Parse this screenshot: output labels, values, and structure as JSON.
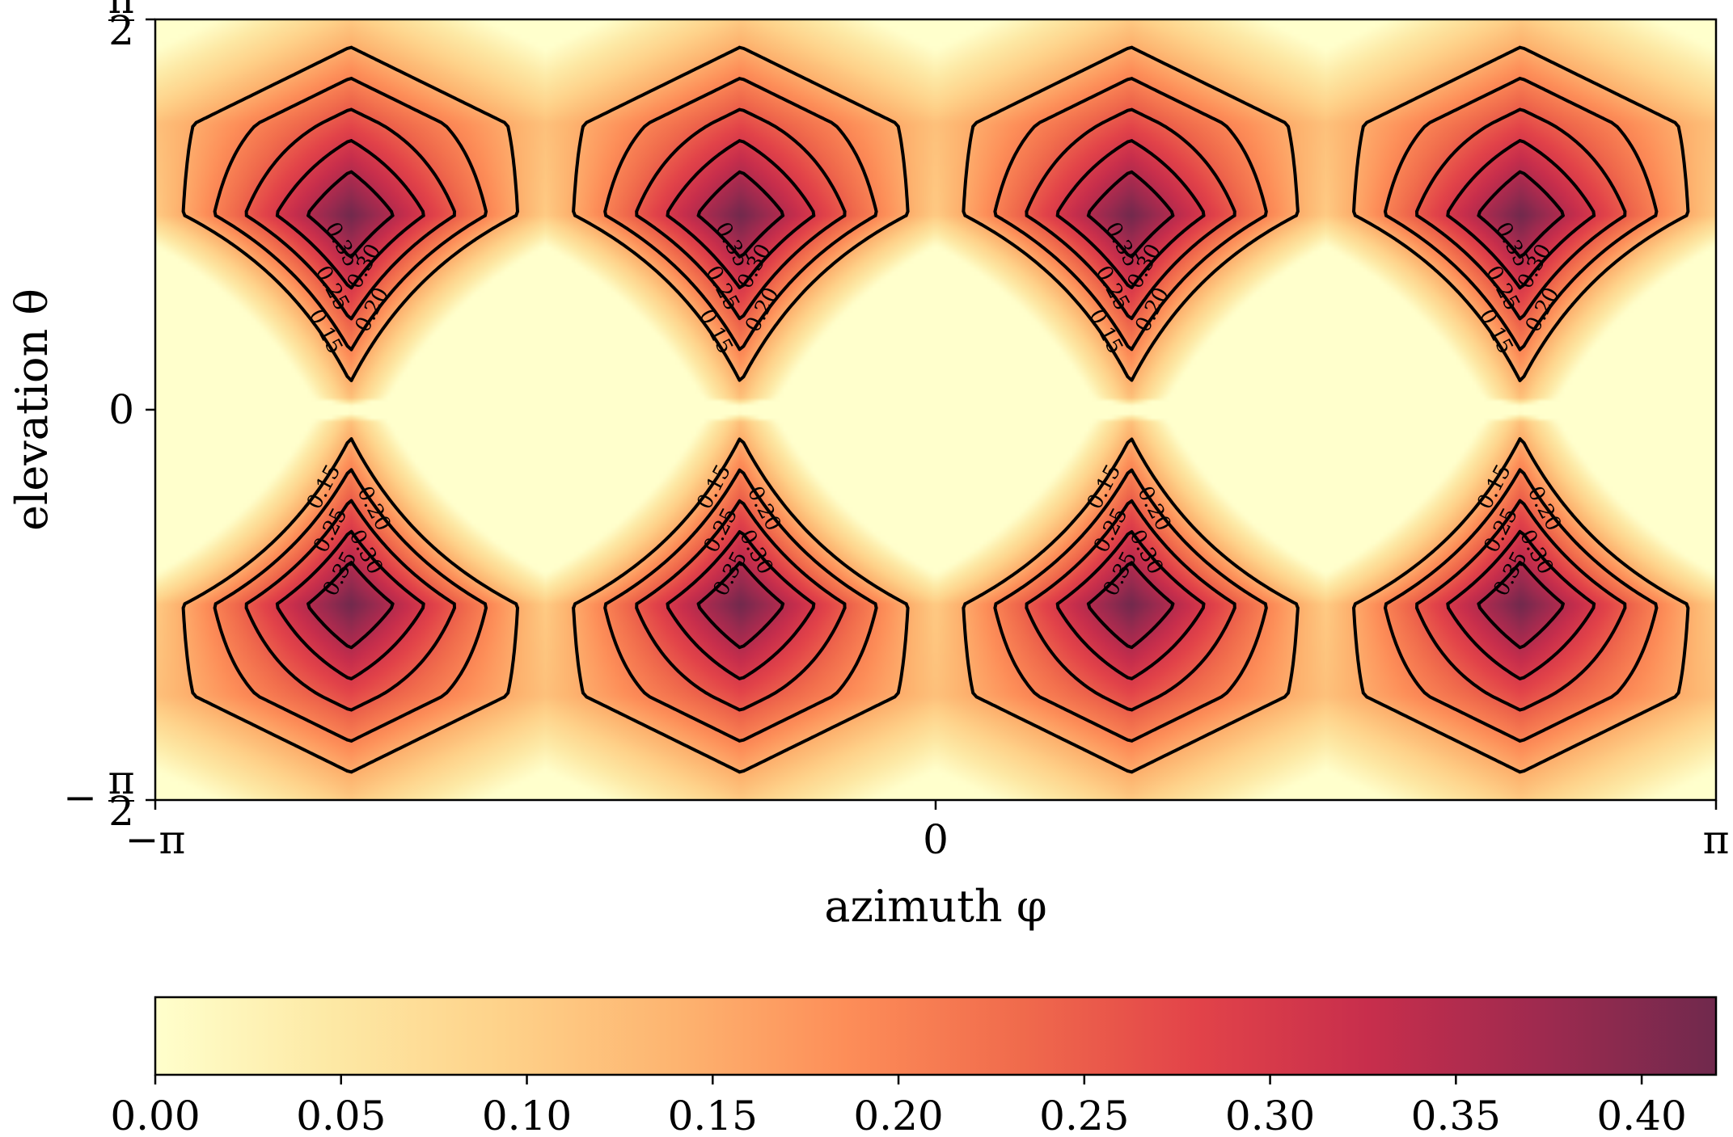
{
  "chart_data": {
    "type": "heatmap",
    "xlabel": "azimuth φ",
    "ylabel": "elevation θ",
    "xlim": [
      -3.14159,
      3.14159
    ],
    "ylim": [
      -1.5708,
      1.5708
    ],
    "xticks": [
      {
        "value": -3.14159,
        "label": "−π"
      },
      {
        "value": 0,
        "label": "0"
      },
      {
        "value": 3.14159,
        "label": "π"
      }
    ],
    "yticks": [
      {
        "value": 1.5708,
        "num": "π",
        "den": "2",
        "sign": ""
      },
      {
        "value": 0,
        "label": "0"
      },
      {
        "value": -1.5708,
        "num": "π",
        "den": "2",
        "sign": "−"
      }
    ],
    "lobe_centers_phi": [
      -2.356,
      -0.785,
      0.785,
      2.356
    ],
    "lobe_center_theta": 0.785,
    "lobe_base_theta": 0.785,
    "lobe_half_width_phi": 0.785,
    "peak_value": 0.42,
    "contour_levels": [
      0.15,
      0.2,
      0.25,
      0.3,
      0.35
    ],
    "contour_labels": [
      "0.15",
      "0.20",
      "0.25",
      "0.30",
      "0.35"
    ],
    "colorbar": {
      "vmin": 0.0,
      "vmax": 0.42,
      "ticks": [
        0.0,
        0.05,
        0.1,
        0.15,
        0.2,
        0.25,
        0.3,
        0.35,
        0.4
      ],
      "tick_labels": [
        "0.00",
        "0.05",
        "0.10",
        "0.15",
        "0.20",
        "0.25",
        "0.30",
        "0.35",
        "0.40"
      ],
      "colormap": [
        "#ffffcc",
        "#fde9a5",
        "#fed28a",
        "#fdb470",
        "#fd8d58",
        "#f06a4c",
        "#e24349",
        "#c72e4c",
        "#9e2a4f",
        "#70294d"
      ]
    }
  }
}
